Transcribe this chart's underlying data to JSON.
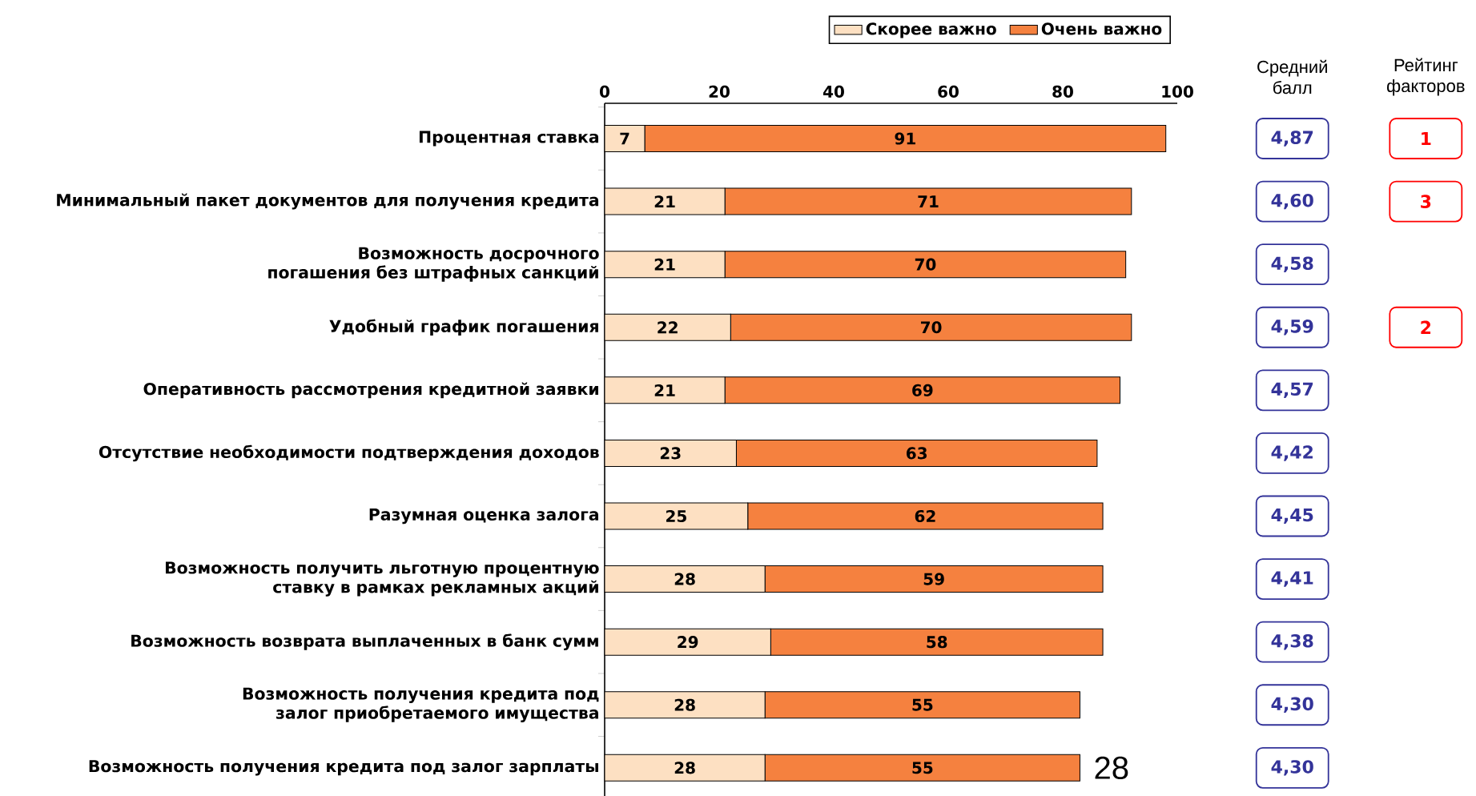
{
  "chart_data": {
    "type": "bar",
    "orientation": "horizontal",
    "stacked": true,
    "categories": [
      "Процентная ставка",
      "Минимальный пакет документов для получения кредита",
      "Возможность досрочного погашения без штрафных санкций",
      "Удобный график погашения",
      "Оперативность рассмотрения кредитной заявки",
      "Отсутствие необходимости подтверждения доходов",
      "Разумная оценка залога",
      "Возможность получить льготную процентную ставку в рамках рекламных акций",
      "Возможность возврата выплаченных в банк сумм",
      "Возможность получения кредита под залог приобретаемого имущества",
      "Возможность получения кредита под залог зарплаты"
    ],
    "series": [
      {
        "name": "Скорее важно",
        "color": "#fde0c2",
        "values": [
          7,
          21,
          21,
          22,
          21,
          23,
          25,
          28,
          29,
          28,
          28
        ]
      },
      {
        "name": "Очень важно",
        "color": "#f5813f",
        "values": [
          91,
          71,
          70,
          70,
          69,
          63,
          62,
          59,
          58,
          55,
          55
        ]
      }
    ],
    "xlim": [
      0,
      100
    ],
    "xticks": [
      0,
      20,
      40,
      60,
      80,
      100
    ],
    "data_labels": true,
    "legend": "top",
    "grid": false,
    "annotations": [
      "Средний балл",
      "Рейтинг факторов",
      "4,87",
      "4,60",
      "4,58",
      "4,59",
      "4,57",
      "4,42",
      "4,45",
      "4,41",
      "4,38",
      "4,30",
      "4,30",
      "1",
      "3",
      "2",
      "28"
    ]
  }
}
